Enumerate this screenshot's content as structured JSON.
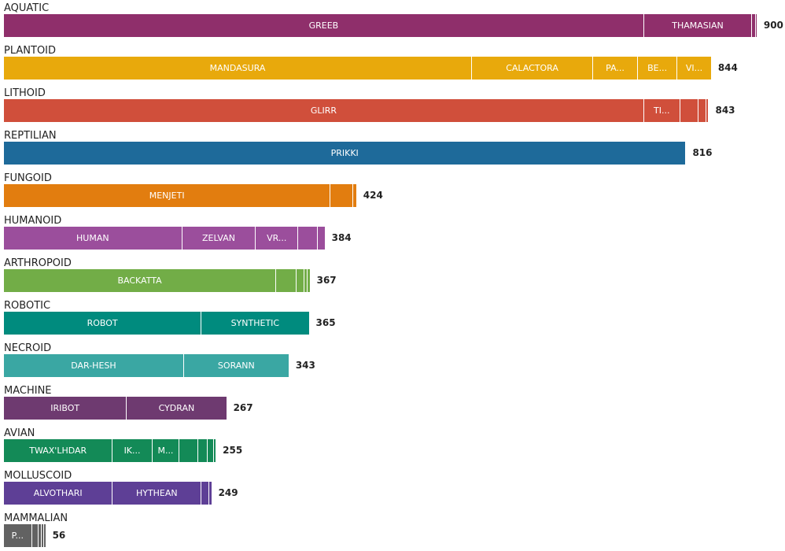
{
  "chart_data": {
    "type": "bar",
    "orientation": "horizontal",
    "stacked": true,
    "groups": [
      {
        "name": "AQUATIC",
        "total": "900",
        "color": "#8f2f6b",
        "segments": [
          {
            "label": "GREEB",
            "value": 729
          },
          {
            "label": "THAMASIAN",
            "value": 123
          },
          {
            "label": "",
            "value": 4
          },
          {
            "label": "",
            "value": 2
          }
        ]
      },
      {
        "name": "PLANTOID",
        "total": "844",
        "color": "#e8a90c",
        "segments": [
          {
            "label": "MANDASURA",
            "value": 533
          },
          {
            "label": "CALACTORA",
            "value": 138
          },
          {
            "label": "PA...",
            "value": 51
          },
          {
            "label": "BE...",
            "value": 45
          },
          {
            "label": "VI...",
            "value": 39
          }
        ]
      },
      {
        "name": "LITHOID",
        "total": "843",
        "color": "#d04f3b",
        "segments": [
          {
            "label": "GLIRR",
            "value": 729
          },
          {
            "label": "TI...",
            "value": 41
          },
          {
            "label": "",
            "value": 21
          },
          {
            "label": "",
            "value": 9
          },
          {
            "label": "",
            "value": 3
          }
        ]
      },
      {
        "name": "REPTILIAN",
        "total": "816",
        "color": "#1e6a9a",
        "segments": [
          {
            "label": "PRIKKI",
            "value": 777
          }
        ]
      },
      {
        "name": "FUNGOID",
        "total": "424",
        "color": "#e27d0f",
        "segments": [
          {
            "label": "MENJETI",
            "value": 372
          },
          {
            "label": "",
            "value": 26
          },
          {
            "label": "",
            "value": 4
          }
        ]
      },
      {
        "name": "HUMANOID",
        "total": "384",
        "color": "#9b4e9c",
        "segments": [
          {
            "label": "HUMAN",
            "value": 203
          },
          {
            "label": "ZELVAN",
            "value": 84
          },
          {
            "label": "VR...",
            "value": 48
          },
          {
            "label": "",
            "value": 22
          },
          {
            "label": "",
            "value": 9
          }
        ]
      },
      {
        "name": "ARTHROPOID",
        "total": "367",
        "color": "#72ad47",
        "segments": [
          {
            "label": "BACKATTA",
            "value": 310
          },
          {
            "label": "",
            "value": 23
          },
          {
            "label": "",
            "value": 9
          },
          {
            "label": "",
            "value": 4
          },
          {
            "label": "",
            "value": 3
          }
        ]
      },
      {
        "name": "ROBOTIC",
        "total": "365",
        "color": "#008b7e",
        "segments": [
          {
            "label": "ROBOT",
            "value": 225
          },
          {
            "label": "SYNTHETIC",
            "value": 123
          }
        ]
      },
      {
        "name": "NECROID",
        "total": "343",
        "color": "#3aa7a3",
        "segments": [
          {
            "label": "DAR-HESH",
            "value": 205
          },
          {
            "label": "SORANN",
            "value": 120
          }
        ]
      },
      {
        "name": "MACHINE",
        "total": "267",
        "color": "#6e3a70",
        "segments": [
          {
            "label": "IRIBOT",
            "value": 140
          },
          {
            "label": "CYDRAN",
            "value": 114
          }
        ]
      },
      {
        "name": "AVIAN",
        "total": "255",
        "color": "#138a57",
        "segments": [
          {
            "label": "TWAX'LHDAR",
            "value": 124
          },
          {
            "label": "IK...",
            "value": 45
          },
          {
            "label": "M...",
            "value": 31
          },
          {
            "label": "",
            "value": 21
          },
          {
            "label": "",
            "value": 11
          },
          {
            "label": "",
            "value": 7
          },
          {
            "label": "",
            "value": 3
          }
        ]
      },
      {
        "name": "MOLLUSCOID",
        "total": "249",
        "color": "#5e3f96",
        "segments": [
          {
            "label": "ALVOTHARI",
            "value": 124
          },
          {
            "label": "HYTHEAN",
            "value": 101
          },
          {
            "label": "",
            "value": 9
          },
          {
            "label": "",
            "value": 3
          }
        ]
      },
      {
        "name": "MAMMALIAN",
        "total": "56",
        "color": "#626262",
        "segments": [
          {
            "label": "P...",
            "value": 32
          },
          {
            "label": "",
            "value": 7
          },
          {
            "label": "",
            "value": 4
          },
          {
            "label": "",
            "value": 3
          },
          {
            "label": "",
            "value": 2
          }
        ]
      }
    ]
  }
}
